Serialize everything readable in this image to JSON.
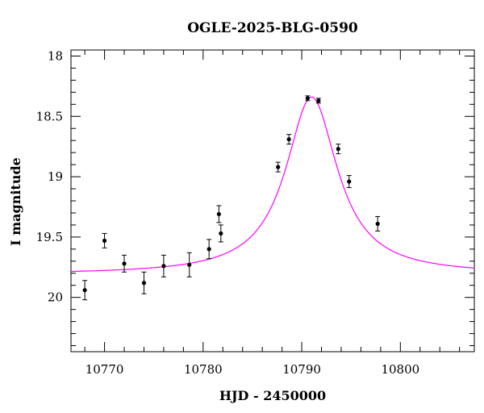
{
  "chart_data": {
    "type": "scatter",
    "title": "OGLE-2025-BLG-0590",
    "xlabel": "HJD - 2450000",
    "ylabel": "I magnitude",
    "xlim": [
      10766.6,
      10807.5
    ],
    "ylim": [
      20.45,
      17.95
    ],
    "y_inverted": true,
    "grid": false,
    "xticks": {
      "major": [
        10770,
        10780,
        10790,
        10800
      ],
      "minor_step": 2
    },
    "yticks": {
      "major": [
        18,
        18.5,
        19,
        19.5,
        20
      ],
      "minor_step": 0.1
    },
    "xtick_labels": [
      "10770",
      "10780",
      "10790",
      "10800"
    ],
    "ytick_labels": [
      "18",
      "18.5",
      "19",
      "19.5",
      "20"
    ],
    "colors": {
      "model": "#ff00ff",
      "points": "#000000"
    },
    "series": [
      {
        "type": "scatter-errorbar",
        "points": [
          {
            "x": 10768.0,
            "y": 19.94,
            "err": 0.08
          },
          {
            "x": 10770.0,
            "y": 19.53,
            "err": 0.06
          },
          {
            "x": 10772.0,
            "y": 19.72,
            "err": 0.07
          },
          {
            "x": 10774.0,
            "y": 19.88,
            "err": 0.09
          },
          {
            "x": 10776.0,
            "y": 19.74,
            "err": 0.09
          },
          {
            "x": 10778.6,
            "y": 19.73,
            "err": 0.1
          },
          {
            "x": 10780.6,
            "y": 19.6,
            "err": 0.08
          },
          {
            "x": 10781.6,
            "y": 19.31,
            "err": 0.07
          },
          {
            "x": 10781.8,
            "y": 19.47,
            "err": 0.07
          },
          {
            "x": 10787.6,
            "y": 18.92,
            "err": 0.04
          },
          {
            "x": 10788.7,
            "y": 18.69,
            "err": 0.04
          },
          {
            "x": 10790.6,
            "y": 18.35,
            "err": 0.02
          },
          {
            "x": 10791.7,
            "y": 18.37,
            "err": 0.02
          },
          {
            "x": 10793.7,
            "y": 18.77,
            "err": 0.04
          },
          {
            "x": 10794.8,
            "y": 19.04,
            "err": 0.05
          },
          {
            "x": 10797.7,
            "y": 19.39,
            "err": 0.06
          }
        ]
      },
      {
        "type": "line",
        "model": {
          "t0": 10791.0,
          "fwhm": 6.4,
          "baseline": 19.81,
          "peak": 18.34
        }
      }
    ]
  }
}
